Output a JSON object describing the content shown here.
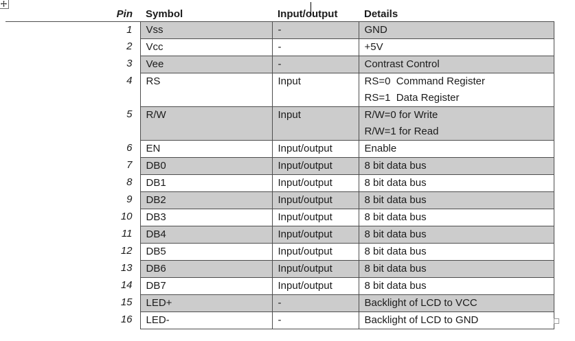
{
  "colors": {
    "row_shading": "#cccccc",
    "table_border": "#4d4d4d",
    "caret": "#000000"
  },
  "icons": {
    "table_move_handle": "four-headed-arrow",
    "table_resize_handle": "small-square"
  },
  "table": {
    "header": {
      "pin": "Pin",
      "symbol": "Symbol",
      "io": "Input/output",
      "details": "Details"
    },
    "rows": [
      {
        "pin": "1",
        "symbol": "Vss",
        "io": "-",
        "details": "GND",
        "shaded": true,
        "tall": false
      },
      {
        "pin": "2",
        "symbol": "Vcc",
        "io": "-",
        "details": "+5V",
        "shaded": false,
        "tall": false
      },
      {
        "pin": "3",
        "symbol": "Vee",
        "io": "-",
        "details": "Contrast Control",
        "shaded": true,
        "tall": false
      },
      {
        "pin": "4",
        "symbol": "RS",
        "io": "Input",
        "details": "RS=0  Command Register\nRS=1  Data Register",
        "shaded": false,
        "tall": true
      },
      {
        "pin": "5",
        "symbol": "R/W",
        "io": "Input",
        "details": "R/W=0 for Write\nR/W=1 for Read",
        "shaded": true,
        "tall": true
      },
      {
        "pin": "6",
        "symbol": "EN",
        "io": "Input/output",
        "details": "Enable",
        "shaded": false,
        "tall": false
      },
      {
        "pin": "7",
        "symbol": "DB0",
        "io": "Input/output",
        "details": "8 bit data bus",
        "shaded": true,
        "tall": false
      },
      {
        "pin": "8",
        "symbol": "DB1",
        "io": "Input/output",
        "details": "8 bit data bus",
        "shaded": false,
        "tall": false
      },
      {
        "pin": "9",
        "symbol": "DB2",
        "io": "Input/output",
        "details": "8 bit data bus",
        "shaded": true,
        "tall": false
      },
      {
        "pin": "10",
        "symbol": "DB3",
        "io": "Input/output",
        "details": "8 bit data bus",
        "shaded": false,
        "tall": false
      },
      {
        "pin": "11",
        "symbol": "DB4",
        "io": "Input/output",
        "details": "8 bit data bus",
        "shaded": true,
        "tall": false
      },
      {
        "pin": "12",
        "symbol": "DB5",
        "io": "Input/output",
        "details": "8 bit data bus",
        "shaded": false,
        "tall": false
      },
      {
        "pin": "13",
        "symbol": "DB6",
        "io": "Input/output",
        "details": "8 bit data bus",
        "shaded": true,
        "tall": false
      },
      {
        "pin": "14",
        "symbol": "DB7",
        "io": "Input/output",
        "details": "8 bit data bus",
        "shaded": false,
        "tall": false
      },
      {
        "pin": "15",
        "symbol": "LED+",
        "io": "-",
        "details": "Backlight of LCD to VCC",
        "shaded": true,
        "tall": false
      },
      {
        "pin": "16",
        "symbol": "LED-",
        "io": "-",
        "details": "Backlight of LCD to GND",
        "shaded": false,
        "tall": false
      }
    ]
  }
}
